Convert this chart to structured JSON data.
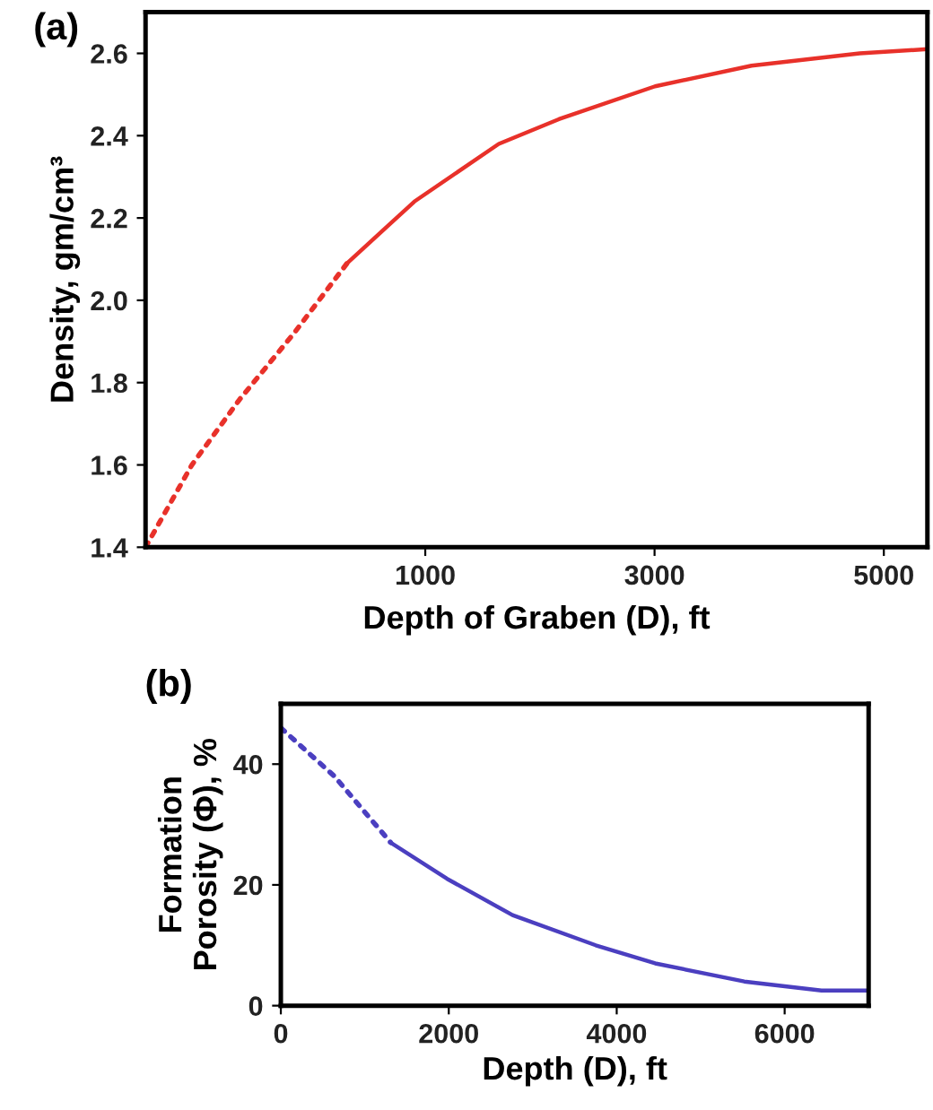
{
  "chart_data": [
    {
      "type": "line",
      "title": "(a)",
      "xlabel": "Depth of Graben (D), ft",
      "ylabel": "Density, gm/cm³",
      "xlim": [
        -1440,
        5380
      ],
      "xticks": [
        1000,
        3000,
        5000
      ],
      "ylim": [
        1.4,
        2.7
      ],
      "yticks": [
        1.4,
        1.6,
        1.8,
        {
          "value": 2,
          "label": "2.0"
        },
        2.2,
        2.4,
        2.6
      ],
      "grid": false,
      "legend": false,
      "marker": "none",
      "series": [
        {
          "color": "#e8312a",
          "line_style": "dotted",
          "x": [
            -1440,
            -1036,
            -617,
            -145,
            318
          ],
          "values": [
            1.4,
            1.6,
            1.76,
            1.92,
            2.09
          ]
        },
        {
          "color": "#e8312a",
          "line_style": "solid",
          "x": [
            318,
            905,
            1641,
            2165,
            3005,
            3846,
            4790,
            5370
          ],
          "values": [
            2.09,
            2.24,
            2.38,
            2.44,
            2.52,
            2.57,
            2.6,
            2.61
          ]
        }
      ]
    },
    {
      "type": "line",
      "title": "(b)",
      "xlabel": "Depth (D), ft",
      "ylabel": "Formation\nPorosity (Φ), %",
      "xlim": [
        0,
        7000
      ],
      "xticks": [
        0,
        2000,
        4000,
        6000
      ],
      "ylim": [
        0,
        50
      ],
      "yticks": [
        0,
        20,
        40
      ],
      "grid": false,
      "legend": false,
      "marker": "none",
      "series": [
        {
          "color": "#4b3fc0",
          "line_style": "dotted",
          "x": [
            0,
            637,
            1309
          ],
          "values": [
            46,
            38,
            27
          ]
        },
        {
          "color": "#4b3fc0",
          "line_style": "solid",
          "x": [
            1309,
            1981,
            2759,
            3750,
            4458,
            5519,
            6439,
            7000
          ],
          "values": [
            27,
            21,
            15,
            10,
            7,
            4,
            2.5,
            2.5
          ]
        }
      ]
    }
  ]
}
